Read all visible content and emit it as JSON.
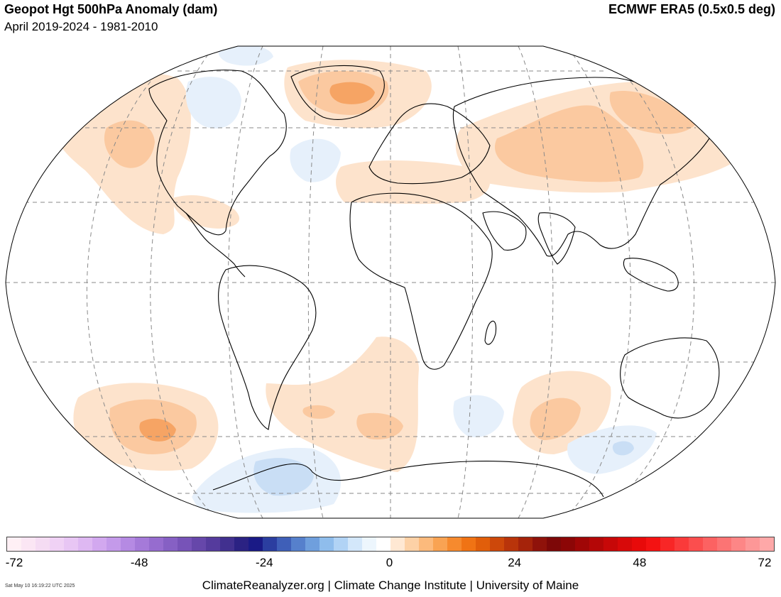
{
  "header": {
    "title": "Geopot Hgt 500hPa Anomaly (dam)",
    "subtitle": "April 2019-2024 - 1981-2010",
    "dataset": "ECMWF ERA5 (0.5x0.5 deg)"
  },
  "colorbar": {
    "tick_labels": [
      "-72",
      "-48",
      "-24",
      "0",
      "24",
      "48",
      "72"
    ],
    "colors": [
      "#fff0f5",
      "#fbe6f4",
      "#f5dcf3",
      "#f0d2f5",
      "#e8c6f4",
      "#deb8f2",
      "#d2a8ef",
      "#c49aea",
      "#b58ae3",
      "#a57ad9",
      "#966ccf",
      "#8660c4",
      "#7753b8",
      "#6647aa",
      "#553b9d",
      "#41308f",
      "#2b2283",
      "#1a1a86",
      "#2b3ea0",
      "#3f5fb8",
      "#5680cc",
      "#6f9fdd",
      "#8fbdec",
      "#b1d3f5",
      "#d3e7fa",
      "#edf6fd",
      "#ffffff",
      "#ffe8d3",
      "#fdd1a6",
      "#fcba7c",
      "#f9a353",
      "#f68a2e",
      "#f07314",
      "#e15e0a",
      "#cd480a",
      "#b9340a",
      "#a5230a",
      "#8f120a",
      "#7d0808",
      "#8c0606",
      "#a00606",
      "#b40707",
      "#c70808",
      "#d80909",
      "#e80a0a",
      "#f41212",
      "#f82626",
      "#fa3a3a",
      "#fb4e4e",
      "#fc6262",
      "#fc7474",
      "#fd8686",
      "#fd9797",
      "#fea8a8"
    ]
  },
  "footer": {
    "timestamp": "Sat May 10 16:19:22 UTC 2025",
    "credit": "ClimateReanalyzer.org | Climate Change Institute | University of Maine"
  },
  "map": {
    "projection": "Robinson",
    "anomaly_colors": {
      "positive_light": "#fde3cc",
      "positive_mid": "#fbc9a0",
      "positive_strong": "#f6a464",
      "negative_light": "#e6f0fb",
      "negative_mid": "#c9def5"
    }
  }
}
